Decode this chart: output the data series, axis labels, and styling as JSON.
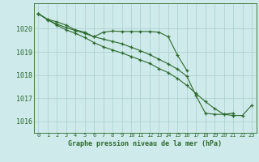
{
  "x": [
    0,
    1,
    2,
    3,
    4,
    5,
    6,
    7,
    8,
    9,
    10,
    11,
    12,
    13,
    14,
    15,
    16,
    17,
    18,
    19,
    20,
    21,
    22,
    23
  ],
  "line1": [
    1020.65,
    1020.4,
    1020.3,
    1020.15,
    1019.95,
    1019.85,
    1019.65,
    1019.85,
    1019.9,
    1019.88,
    1019.88,
    1019.88,
    1019.88,
    1019.85,
    1019.65,
    1018.85,
    1018.2,
    null,
    null,
    null,
    null,
    null,
    null,
    null
  ],
  "line2": [
    1020.65,
    1020.4,
    1020.15,
    1019.95,
    1019.8,
    1019.62,
    1019.4,
    1019.22,
    1019.08,
    1018.95,
    1018.8,
    1018.65,
    1018.5,
    1018.28,
    1018.1,
    1017.85,
    1017.55,
    1017.2,
    1016.85,
    1016.55,
    1016.3,
    1016.25,
    1016.25,
    1016.7
  ],
  "line3": [
    1020.65,
    1020.38,
    1020.2,
    1020.05,
    1019.92,
    1019.8,
    1019.65,
    1019.55,
    1019.45,
    1019.35,
    1019.2,
    1019.05,
    1018.88,
    1018.68,
    1018.48,
    1018.25,
    1017.95,
    1017.1,
    1016.35,
    1016.3,
    1016.3,
    1016.35,
    null,
    null
  ],
  "line_color": "#2d6a2d",
  "bg_color": "#ceeaea",
  "grid_color": "#aacece",
  "title": "Graphe pression niveau de la mer (hPa)",
  "ylim": [
    1015.5,
    1021.1
  ],
  "yticks": [
    1016,
    1017,
    1018,
    1019,
    1020
  ],
  "xlim": [
    -0.5,
    23.5
  ],
  "xticks": [
    0,
    1,
    2,
    3,
    4,
    5,
    6,
    7,
    8,
    9,
    10,
    11,
    12,
    13,
    14,
    15,
    16,
    17,
    18,
    19,
    20,
    21,
    22,
    23
  ]
}
